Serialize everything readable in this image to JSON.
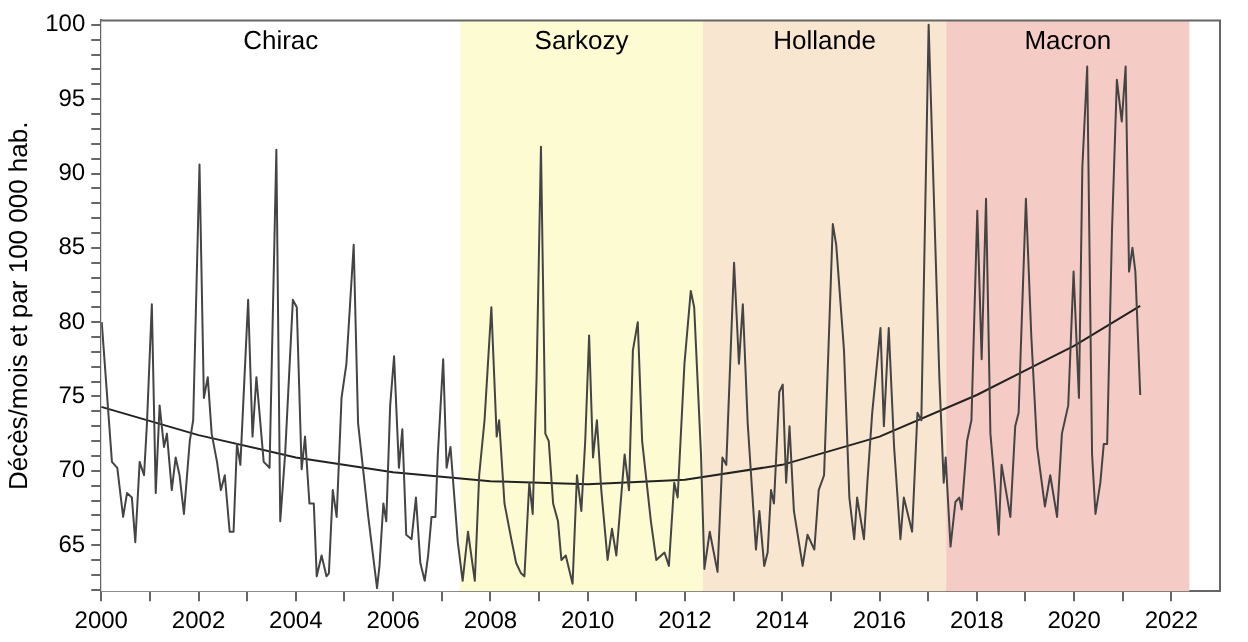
{
  "chart_data": {
    "type": "line",
    "ylabel": "Décès/mois et par 100 000 hab.",
    "xlim": [
      2000,
      2023
    ],
    "ylim": [
      61.9,
      100.3
    ],
    "xticks": [
      2000,
      {
        "value": 2001,
        "label": null
      },
      2002,
      {
        "value": 2003,
        "label": null
      },
      2004,
      {
        "value": 2005,
        "label": null
      },
      2006,
      {
        "value": 2007,
        "label": null
      },
      2008,
      {
        "value": 2009,
        "label": null
      },
      2010,
      {
        "value": 2011,
        "label": null
      },
      2012,
      {
        "value": 2013,
        "label": null
      },
      2014,
      {
        "value": 2015,
        "label": null
      },
      2016,
      {
        "value": 2017,
        "label": null
      },
      2018,
      {
        "value": 2019,
        "label": null
      },
      2020,
      {
        "value": 2021,
        "label": null
      },
      2022
    ],
    "yticks": [
      {
        "value": 62,
        "label": null
      },
      {
        "value": 63,
        "label": null
      },
      {
        "value": 64,
        "label": null
      },
      65,
      {
        "value": 66,
        "label": null
      },
      {
        "value": 67,
        "label": null
      },
      {
        "value": 68,
        "label": null
      },
      {
        "value": 69,
        "label": null
      },
      70,
      {
        "value": 71,
        "label": null
      },
      {
        "value": 72,
        "label": null
      },
      {
        "value": 73,
        "label": null
      },
      {
        "value": 74,
        "label": null
      },
      75,
      {
        "value": 76,
        "label": null
      },
      {
        "value": 77,
        "label": null
      },
      {
        "value": 78,
        "label": null
      },
      {
        "value": 79,
        "label": null
      },
      80,
      {
        "value": 81,
        "label": null
      },
      {
        "value": 82,
        "label": null
      },
      {
        "value": 83,
        "label": null
      },
      {
        "value": 84,
        "label": null
      },
      85,
      {
        "value": 86,
        "label": null
      },
      {
        "value": 87,
        "label": null
      },
      {
        "value": 88,
        "label": null
      },
      {
        "value": 89,
        "label": null
      },
      90,
      {
        "value": 91,
        "label": null
      },
      {
        "value": 92,
        "label": null
      },
      {
        "value": 93,
        "label": null
      },
      {
        "value": 94,
        "label": null
      },
      95,
      {
        "value": 96,
        "label": null
      },
      {
        "value": 97,
        "label": null
      },
      {
        "value": 98,
        "label": null
      },
      {
        "value": 99,
        "label": null
      },
      100
    ],
    "grid": false,
    "legend": false,
    "marker": "none",
    "line_style": "solid",
    "bands": [
      {
        "axis": "x",
        "from": 2000,
        "to": 2007.38,
        "label": "Chirac",
        "color": "#ffffff"
      },
      {
        "axis": "x",
        "from": 2007.38,
        "to": 2012.37,
        "label": "Sarkozy",
        "color": "#fdfbd2"
      },
      {
        "axis": "x",
        "from": 2012.37,
        "to": 2017.37,
        "label": "Hollande",
        "color": "#f8e6d0"
      },
      {
        "axis": "x",
        "from": 2017.37,
        "to": 2022.37,
        "label": "Macron",
        "color": "#f5ccc5"
      }
    ],
    "series": [
      {
        "color": "#444444",
        "x": [
          2000.01,
          2000.22,
          2000.33,
          2000.45,
          2000.53,
          2000.63,
          2000.7,
          2000.79,
          2000.88,
          2000.94,
          2001.04,
          2001.12,
          2001.2,
          2001.29,
          2001.35,
          2001.45,
          2001.53,
          2001.61,
          2001.7,
          2001.82,
          2001.89,
          2002.02,
          2002.11,
          2002.19,
          2002.27,
          2002.38,
          2002.46,
          2002.54,
          2002.64,
          2002.72,
          2002.79,
          2002.86,
          2003.02,
          2003.11,
          2003.19,
          2003.34,
          2003.46,
          2003.6,
          2003.68,
          2003.78,
          2003.94,
          2004.02,
          2004.12,
          2004.19,
          2004.28,
          2004.37,
          2004.43,
          2004.53,
          2004.63,
          2004.68,
          2004.76,
          2004.84,
          2004.94,
          2005.04,
          2005.19,
          2005.28,
          2005.35,
          2005.49,
          2005.67,
          2005.72,
          2005.8,
          2005.86,
          2005.94,
          2006.02,
          2006.12,
          2006.19,
          2006.27,
          2006.38,
          2006.47,
          2006.56,
          2006.65,
          2006.72,
          2006.79,
          2006.87,
          2006.92,
          2007.03,
          2007.1,
          2007.18,
          2007.33,
          2007.43,
          2007.54,
          2007.68,
          2007.77,
          2007.88,
          2008.02,
          2008.13,
          2008.18,
          2008.29,
          2008.43,
          2008.53,
          2008.63,
          2008.7,
          2008.8,
          2008.87,
          2008.95,
          2009.04,
          2009.13,
          2009.2,
          2009.29,
          2009.39,
          2009.46,
          2009.55,
          2009.69,
          2009.78,
          2009.87,
          2009.95,
          2010.03,
          2010.11,
          2010.19,
          2010.28,
          2010.41,
          2010.5,
          2010.59,
          2010.76,
          2010.85,
          2010.93,
          2011.03,
          2011.12,
          2011.3,
          2011.41,
          2011.58,
          2011.67,
          2011.78,
          2011.85,
          2011.99,
          2012.12,
          2012.19,
          2012.33,
          2012.4,
          2012.51,
          2012.67,
          2012.77,
          2012.85,
          2013.01,
          2013.11,
          2013.19,
          2013.29,
          2013.46,
          2013.53,
          2013.63,
          2013.7,
          2013.77,
          2013.83,
          2013.94,
          2014.01,
          2014.08,
          2014.15,
          2014.24,
          2014.42,
          2014.52,
          2014.66,
          2014.75,
          2014.86,
          2015.04,
          2015.11,
          2015.27,
          2015.38,
          2015.48,
          2015.54,
          2015.68,
          2015.75,
          2015.85,
          2016.02,
          2016.09,
          2016.19,
          2016.3,
          2016.43,
          2016.5,
          2016.67,
          2016.78,
          2016.86,
          2017.01,
          2017.23,
          2017.32,
          2017.36,
          2017.46,
          2017.56,
          2017.64,
          2017.69,
          2017.8,
          2017.89,
          2018.01,
          2018.1,
          2018.19,
          2018.28,
          2018.38,
          2018.45,
          2018.51,
          2018.69,
          2018.79,
          2018.86,
          2019.01,
          2019.12,
          2019.24,
          2019.4,
          2019.51,
          2019.65,
          2019.75,
          2019.88,
          2019.99,
          2020.1,
          2020.17,
          2020.27,
          2020.37,
          2020.44,
          2020.54,
          2020.61,
          2020.68,
          2020.78,
          2020.88,
          2020.98,
          2021.06,
          2021.13,
          2021.2,
          2021.26,
          2021.36
        ],
        "values": [
          80.0,
          70.6,
          70.2,
          66.9,
          68.5,
          68.2,
          65.2,
          70.6,
          69.7,
          73.2,
          81.2,
          68.5,
          74.4,
          71.6,
          72.5,
          68.7,
          70.9,
          69.7,
          67.1,
          72.0,
          73.4,
          90.6,
          74.9,
          76.3,
          72.5,
          70.6,
          68.7,
          69.7,
          65.9,
          65.9,
          71.8,
          70.4,
          81.5,
          72.3,
          76.3,
          70.6,
          70.2,
          91.6,
          66.6,
          71.1,
          81.5,
          81.0,
          70.1,
          72.3,
          67.8,
          67.8,
          62.9,
          64.3,
          62.9,
          63.1,
          68.7,
          66.9,
          74.9,
          77.2,
          85.2,
          73.2,
          71.1,
          66.9,
          62.1,
          63.6,
          67.8,
          66.6,
          74.4,
          77.7,
          70.2,
          72.8,
          65.7,
          65.4,
          68.2,
          63.8,
          62.6,
          64.3,
          66.9,
          66.9,
          71.1,
          77.5,
          70.2,
          71.6,
          65.2,
          62.6,
          65.9,
          62.6,
          69.7,
          73.4,
          81.0,
          72.3,
          73.4,
          67.8,
          65.4,
          63.8,
          63.1,
          62.9,
          69.2,
          67.1,
          76.3,
          91.8,
          72.5,
          72.0,
          67.8,
          66.6,
          64.0,
          64.3,
          62.4,
          69.7,
          67.3,
          72.0,
          79.1,
          70.9,
          73.4,
          68.7,
          64.0,
          66.1,
          64.3,
          71.1,
          68.7,
          78.1,
          80.0,
          72.0,
          66.6,
          64.0,
          64.5,
          63.6,
          69.2,
          68.2,
          77.2,
          82.1,
          81.0,
          71.1,
          63.4,
          65.9,
          63.2,
          70.9,
          70.4,
          84.0,
          77.2,
          81.2,
          73.2,
          64.7,
          67.3,
          63.6,
          64.5,
          68.7,
          67.8,
          75.3,
          75.8,
          69.2,
          73.0,
          67.3,
          63.6,
          65.7,
          64.7,
          68.7,
          69.7,
          86.6,
          85.2,
          78.1,
          68.2,
          65.4,
          68.2,
          65.4,
          69.2,
          73.9,
          79.6,
          73.0,
          79.6,
          71.6,
          65.4,
          68.2,
          65.9,
          73.9,
          73.4,
          100.0,
          76.3,
          69.2,
          70.9,
          64.9,
          67.9,
          68.2,
          67.4,
          72.0,
          73.4,
          87.5,
          77.5,
          88.3,
          72.5,
          68.7,
          65.7,
          70.4,
          66.9,
          73.0,
          73.9,
          88.3,
          79.1,
          71.6,
          67.6,
          69.7,
          66.9,
          72.5,
          74.4,
          83.4,
          74.9,
          90.4,
          97.2,
          71.1,
          67.1,
          69.2,
          71.8,
          71.8,
          86.2,
          96.3,
          93.5,
          97.2,
          83.4,
          85.0,
          83.4,
          75.1
        ]
      },
      {
        "type": "line",
        "color": "#222222",
        "x": [
          2000,
          2002,
          2004,
          2006,
          2008,
          2010,
          2012,
          2014,
          2016,
          2018,
          2020,
          2021.36
        ],
        "values": [
          74.3,
          72.4,
          70.9,
          69.9,
          69.3,
          69.1,
          69.4,
          70.4,
          72.3,
          75.1,
          78.4,
          81.1
        ]
      }
    ]
  }
}
